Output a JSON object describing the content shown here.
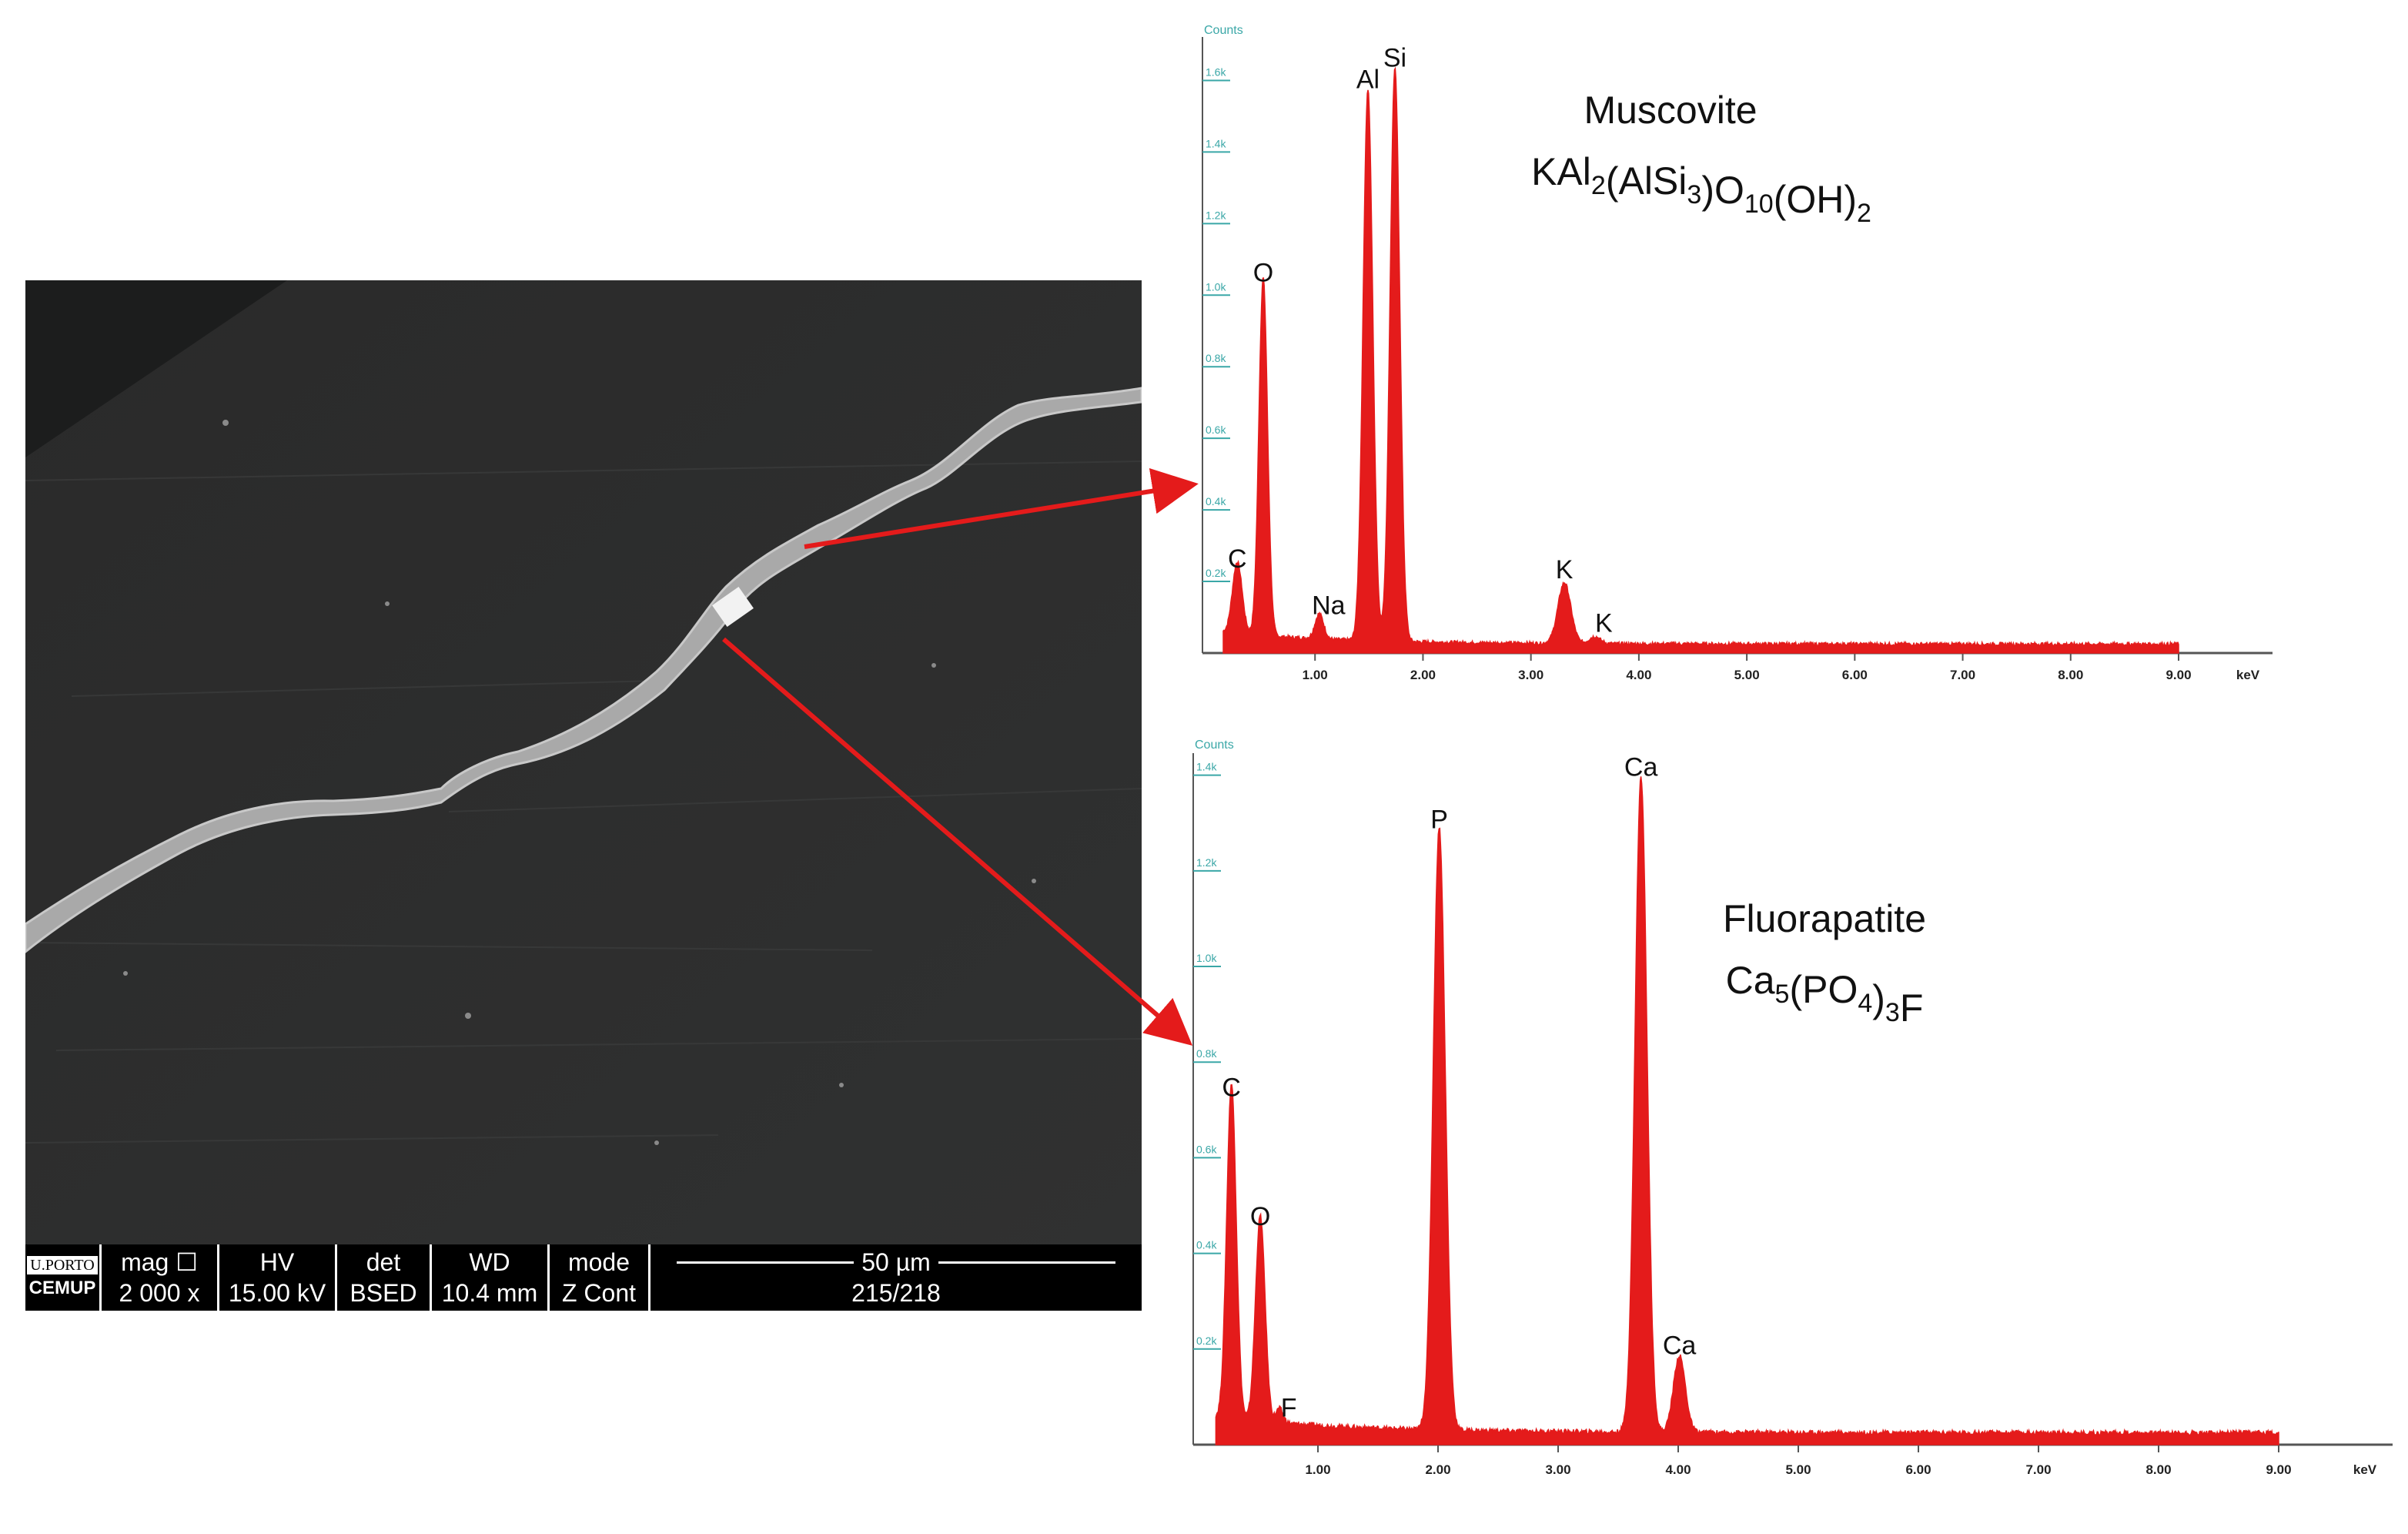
{
  "sem_image": {
    "status_bar": {
      "logo_top": "U.PORTO",
      "logo_bottom": "CEMUP",
      "mag_label": "mag ☐",
      "mag_value": "2 000 x",
      "hv_label": "HV",
      "hv_value": "15.00 kV",
      "det_label": "det",
      "det_value": "BSED",
      "wd_label": "WD",
      "wd_value": "10.4 mm",
      "mode_label": "mode",
      "mode_value": "Z Cont",
      "scale_label": "50 µm",
      "image_number": "215/218"
    }
  },
  "colors": {
    "spectrum": "#e41b1b",
    "arrow": "#e41b1b",
    "axis": "#555555",
    "tick_text": "#3aa7a7"
  },
  "chart_data": [
    {
      "type": "area",
      "title": "Muscovite",
      "subtitle_parts": [
        {
          "t": "KAl",
          "sub": false
        },
        {
          "t": "2",
          "sub": true
        },
        {
          "t": "(AlSi",
          "sub": false
        },
        {
          "t": "3",
          "sub": true
        },
        {
          "t": ")O",
          "sub": false
        },
        {
          "t": "10",
          "sub": true
        },
        {
          "t": "(OH)",
          "sub": false
        },
        {
          "t": "2",
          "sub": true
        }
      ],
      "y_title": "Counts",
      "xunit": "keV",
      "xlim": [
        0.0,
        9.0
      ],
      "ylim": [
        0,
        1.7
      ],
      "x_ticks": [
        "1.00",
        "2.00",
        "3.00",
        "4.00",
        "5.00",
        "6.00",
        "7.00",
        "8.00",
        "9.00"
      ],
      "y_ticks": [
        "0.2k",
        "0.4k",
        "0.6k",
        "0.8k",
        "1.0k",
        "1.2k",
        "1.4k",
        "1.6k"
      ],
      "baseline": 0.02,
      "peaks": [
        {
          "element": "C",
          "x": 0.28,
          "y": 0.2,
          "w": 0.045
        },
        {
          "element": "O",
          "x": 0.52,
          "y": 1.0,
          "w": 0.04
        },
        {
          "element": "Na",
          "x": 1.04,
          "y": 0.07,
          "w": 0.04
        },
        {
          "element": "Al",
          "x": 1.49,
          "y": 1.54,
          "w": 0.045
        },
        {
          "element": "Si",
          "x": 1.74,
          "y": 1.6,
          "w": 0.045
        },
        {
          "element": "K",
          "x": 3.31,
          "y": 0.17,
          "w": 0.06
        },
        {
          "element": "K",
          "x": 3.59,
          "y": 0.02,
          "w": 0.05
        }
      ]
    },
    {
      "type": "area",
      "title": "Fluorapatite",
      "subtitle_parts": [
        {
          "t": "Ca",
          "sub": false
        },
        {
          "t": "5",
          "sub": true
        },
        {
          "t": "(PO",
          "sub": false
        },
        {
          "t": "4",
          "sub": true
        },
        {
          "t": ")",
          "sub": false
        },
        {
          "t": "3",
          "sub": true
        },
        {
          "t": "F",
          "sub": false
        }
      ],
      "y_title": "Counts",
      "xunit": "keV",
      "xlim": [
        0.0,
        9.0
      ],
      "ylim": [
        0,
        1.43
      ],
      "x_ticks": [
        "1.00",
        "2.00",
        "3.00",
        "4.00",
        "5.00",
        "6.00",
        "7.00",
        "8.00",
        "9.00"
      ],
      "y_ticks": [
        "0.2k",
        "0.4k",
        "0.6k",
        "0.8k",
        "1.0k",
        "1.2k",
        "1.4k"
      ],
      "baseline": 0.02,
      "peaks": [
        {
          "element": "C",
          "x": 0.28,
          "y": 0.7,
          "w": 0.04
        },
        {
          "element": "O",
          "x": 0.52,
          "y": 0.43,
          "w": 0.04
        },
        {
          "element": "F",
          "x": 0.68,
          "y": 0.03,
          "w": 0.03
        },
        {
          "element": "P",
          "x": 2.01,
          "y": 1.26,
          "w": 0.05
        },
        {
          "element": "Ca",
          "x": 3.69,
          "y": 1.37,
          "w": 0.05
        },
        {
          "element": "Ca",
          "x": 4.01,
          "y": 0.16,
          "w": 0.05
        }
      ]
    }
  ]
}
